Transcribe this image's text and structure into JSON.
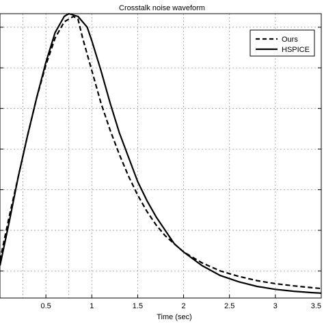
{
  "chart_data": {
    "type": "line",
    "title": "Crosstalk noise waveform",
    "xlabel": "Time (sec)",
    "ylabel": "",
    "xlim": [
      0.0,
      3.5
    ],
    "ylim": [
      0.0,
      1.05
    ],
    "xticks": [
      {
        "value": 0.5,
        "label": "0.5"
      },
      {
        "value": 1.0,
        "label": "1"
      },
      {
        "value": 1.5,
        "label": "1.5"
      },
      {
        "value": 2.0,
        "label": "2"
      },
      {
        "value": 2.5,
        "label": "2.5"
      },
      {
        "value": 3.0,
        "label": "3"
      },
      {
        "value": 3.5,
        "label": "3.5"
      }
    ],
    "ygrid": [
      0.1,
      0.25,
      0.4,
      0.55,
      0.7,
      0.85,
      1.0
    ],
    "grid": true,
    "legend_position": "top-right",
    "series": [
      {
        "name": "Ours",
        "style": "dashed",
        "color": "#000000",
        "x": [
          0.0,
          0.1,
          0.2,
          0.3,
          0.4,
          0.5,
          0.6,
          0.7,
          0.8,
          0.85,
          0.9,
          1.0,
          1.1,
          1.2,
          1.3,
          1.4,
          1.5,
          1.6,
          1.7,
          1.8,
          1.9,
          2.0,
          2.2,
          2.4,
          2.6,
          2.8,
          3.0,
          3.2,
          3.4,
          3.5
        ],
        "y": [
          0.14,
          0.3,
          0.45,
          0.6,
          0.74,
          0.86,
          0.96,
          1.02,
          1.04,
          1.03,
          0.96,
          0.84,
          0.72,
          0.62,
          0.53,
          0.45,
          0.38,
          0.32,
          0.27,
          0.23,
          0.2,
          0.17,
          0.13,
          0.1,
          0.08,
          0.064,
          0.053,
          0.045,
          0.038,
          0.035
        ]
      },
      {
        "name": "HSPICE",
        "style": "solid",
        "color": "#000000",
        "x": [
          0.0,
          0.1,
          0.2,
          0.3,
          0.4,
          0.5,
          0.6,
          0.7,
          0.75,
          0.85,
          0.95,
          1.0,
          1.1,
          1.2,
          1.3,
          1.4,
          1.5,
          1.6,
          1.7,
          1.8,
          1.9,
          2.0,
          2.2,
          2.4,
          2.6,
          2.8,
          3.0,
          3.2,
          3.4,
          3.5
        ],
        "y": [
          0.12,
          0.28,
          0.45,
          0.6,
          0.74,
          0.87,
          0.98,
          1.04,
          1.05,
          1.04,
          1.0,
          0.95,
          0.84,
          0.72,
          0.61,
          0.52,
          0.43,
          0.36,
          0.3,
          0.25,
          0.2,
          0.17,
          0.12,
          0.083,
          0.06,
          0.043,
          0.032,
          0.025,
          0.02,
          0.018
        ]
      }
    ]
  }
}
